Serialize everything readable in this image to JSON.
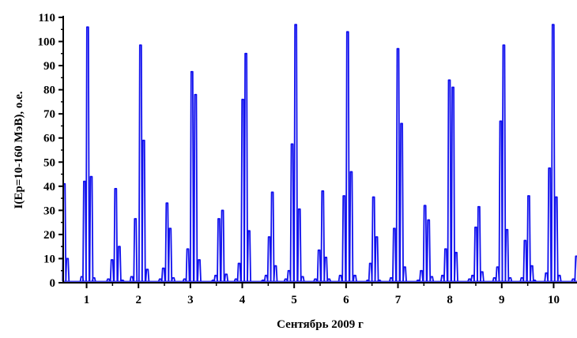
{
  "colors": {
    "series": "#1010ee",
    "axis": "#000000"
  },
  "chart_data": {
    "type": "line",
    "title": "",
    "xlabel": "Сентябрь 2009 г",
    "ylabel": "I(Ep=10-160 МэВ), о.е.",
    "xlim": [
      0.55,
      10.45
    ],
    "ylim": [
      0,
      110
    ],
    "grid": false,
    "legend": "none",
    "x_ticks": [
      1,
      2,
      3,
      4,
      5,
      6,
      7,
      8,
      9,
      10
    ],
    "x_tick_labels": [
      "1",
      "2",
      "3",
      "4",
      "5",
      "6",
      "7",
      "8",
      "9",
      "10"
    ],
    "y_ticks": [
      0,
      10,
      20,
      30,
      40,
      50,
      60,
      70,
      80,
      90,
      100,
      110
    ],
    "y_tick_labels": [
      "0",
      "10",
      "20",
      "30",
      "40",
      "50",
      "60",
      "70",
      "80",
      "90",
      "100",
      "110"
    ],
    "series": [
      {
        "peaks": [
          {
            "x": 0.57,
            "y": 41
          },
          {
            "x": 0.63,
            "y": 10
          },
          {
            "x": 0.91,
            "y": 2.5
          },
          {
            "x": 0.96,
            "y": 42
          },
          {
            "x": 1.02,
            "y": 106
          },
          {
            "x": 1.09,
            "y": 44
          },
          {
            "x": 1.14,
            "y": 2
          },
          {
            "x": 1.42,
            "y": 1.5
          },
          {
            "x": 1.49,
            "y": 9.5
          },
          {
            "x": 1.56,
            "y": 39
          },
          {
            "x": 1.63,
            "y": 15
          },
          {
            "x": 1.69,
            "y": 1
          },
          {
            "x": 1.87,
            "y": 2.5
          },
          {
            "x": 1.94,
            "y": 26.5
          },
          {
            "x": 2.04,
            "y": 98.5
          },
          {
            "x": 2.1,
            "y": 59
          },
          {
            "x": 2.17,
            "y": 5.5
          },
          {
            "x": 2.42,
            "y": 1.5
          },
          {
            "x": 2.48,
            "y": 6
          },
          {
            "x": 2.55,
            "y": 33
          },
          {
            "x": 2.61,
            "y": 22.5
          },
          {
            "x": 2.67,
            "y": 2
          },
          {
            "x": 2.89,
            "y": 1.5
          },
          {
            "x": 2.95,
            "y": 14
          },
          {
            "x": 3.03,
            "y": 87.5
          },
          {
            "x": 3.1,
            "y": 78
          },
          {
            "x": 3.17,
            "y": 9.5
          },
          {
            "x": 3.44,
            "y": 1
          },
          {
            "x": 3.49,
            "y": 3
          },
          {
            "x": 3.55,
            "y": 26.5
          },
          {
            "x": 3.62,
            "y": 30
          },
          {
            "x": 3.69,
            "y": 3.5
          },
          {
            "x": 3.88,
            "y": 1.5
          },
          {
            "x": 3.94,
            "y": 8
          },
          {
            "x": 4.01,
            "y": 76
          },
          {
            "x": 4.07,
            "y": 95
          },
          {
            "x": 4.13,
            "y": 21.5
          },
          {
            "x": 4.4,
            "y": 1
          },
          {
            "x": 4.46,
            "y": 3
          },
          {
            "x": 4.52,
            "y": 19
          },
          {
            "x": 4.58,
            "y": 37.5
          },
          {
            "x": 4.64,
            "y": 7
          },
          {
            "x": 4.84,
            "y": 1.5
          },
          {
            "x": 4.9,
            "y": 5
          },
          {
            "x": 4.96,
            "y": 57.5
          },
          {
            "x": 5.03,
            "y": 107
          },
          {
            "x": 5.1,
            "y": 30.5
          },
          {
            "x": 5.16,
            "y": 2.5
          },
          {
            "x": 5.41,
            "y": 1.5
          },
          {
            "x": 5.48,
            "y": 13.5
          },
          {
            "x": 5.55,
            "y": 38
          },
          {
            "x": 5.61,
            "y": 10.5
          },
          {
            "x": 5.67,
            "y": 1.5
          },
          {
            "x": 5.89,
            "y": 3
          },
          {
            "x": 5.96,
            "y": 36
          },
          {
            "x": 6.03,
            "y": 104
          },
          {
            "x": 6.1,
            "y": 46
          },
          {
            "x": 6.17,
            "y": 3
          },
          {
            "x": 6.42,
            "y": 1
          },
          {
            "x": 6.47,
            "y": 8
          },
          {
            "x": 6.53,
            "y": 35.5
          },
          {
            "x": 6.59,
            "y": 19
          },
          {
            "x": 6.64,
            "y": 1
          },
          {
            "x": 6.87,
            "y": 2
          },
          {
            "x": 6.93,
            "y": 22.5
          },
          {
            "x": 7.0,
            "y": 97
          },
          {
            "x": 7.07,
            "y": 66
          },
          {
            "x": 7.13,
            "y": 6.5
          },
          {
            "x": 7.39,
            "y": 1
          },
          {
            "x": 7.45,
            "y": 5
          },
          {
            "x": 7.52,
            "y": 32
          },
          {
            "x": 7.59,
            "y": 26
          },
          {
            "x": 7.65,
            "y": 2.5
          },
          {
            "x": 7.86,
            "y": 3
          },
          {
            "x": 7.92,
            "y": 14
          },
          {
            "x": 7.99,
            "y": 84
          },
          {
            "x": 8.06,
            "y": 81
          },
          {
            "x": 8.12,
            "y": 12.5
          },
          {
            "x": 8.38,
            "y": 1.5
          },
          {
            "x": 8.44,
            "y": 3
          },
          {
            "x": 8.5,
            "y": 23
          },
          {
            "x": 8.56,
            "y": 31.5
          },
          {
            "x": 8.62,
            "y": 4.5
          },
          {
            "x": 8.86,
            "y": 2
          },
          {
            "x": 8.92,
            "y": 6.5
          },
          {
            "x": 8.98,
            "y": 67
          },
          {
            "x": 9.04,
            "y": 98.5
          },
          {
            "x": 9.1,
            "y": 22
          },
          {
            "x": 9.16,
            "y": 2
          },
          {
            "x": 9.39,
            "y": 2
          },
          {
            "x": 9.45,
            "y": 17.5
          },
          {
            "x": 9.52,
            "y": 36
          },
          {
            "x": 9.58,
            "y": 7
          },
          {
            "x": 9.63,
            "y": 1
          },
          {
            "x": 9.86,
            "y": 4
          },
          {
            "x": 9.92,
            "y": 47.5
          },
          {
            "x": 9.99,
            "y": 107
          },
          {
            "x": 10.05,
            "y": 35.5
          },
          {
            "x": 10.11,
            "y": 3
          },
          {
            "x": 10.38,
            "y": 1.5
          },
          {
            "x": 10.44,
            "y": 11
          }
        ]
      }
    ]
  }
}
